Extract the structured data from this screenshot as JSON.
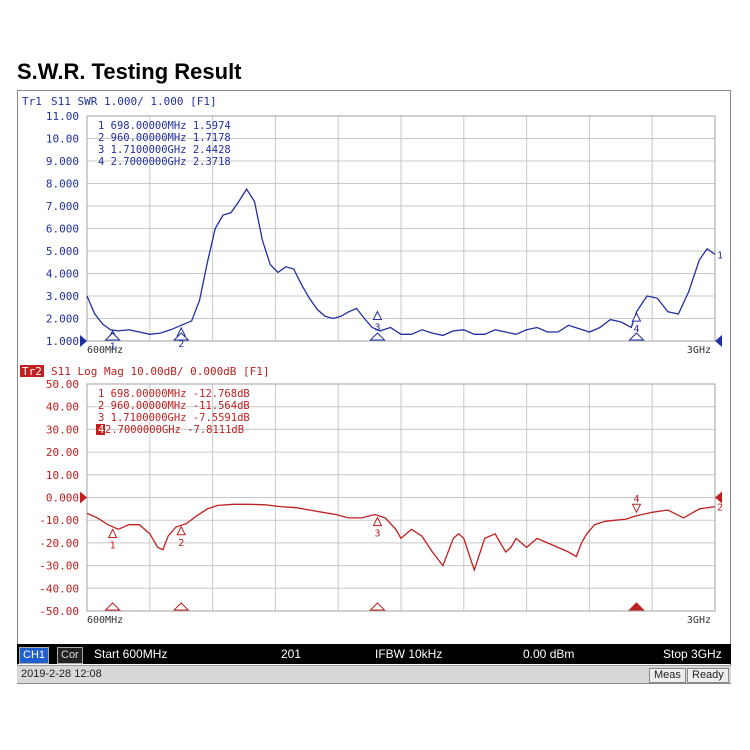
{
  "page": {
    "title": "S.W.R. Testing Result"
  },
  "colors": {
    "trace1": "#2030a0",
    "trace2": "#c02020",
    "grid": "#c8c8c8",
    "marker_fill": "#ffffff"
  },
  "chart_data": [
    {
      "type": "line",
      "trace_label": "Tr1",
      "header": "S11  SWR 1.000/ 1.000      [F1]",
      "y_ticks": [
        "11.00",
        "10.00",
        "9.000",
        "8.000",
        "7.000",
        "6.000",
        "5.000",
        "4.000",
        "3.000",
        "2.000",
        "1.000"
      ],
      "ylim": [
        1,
        11
      ],
      "x_start_label": "600MHz",
      "x_stop_label": "3GHz",
      "xlim_mhz": [
        600,
        3000
      ],
      "marker_table": [
        "1 698.00000MHz 1.5974",
        "2 960.00000MHz 1.7178",
        "3 1.7100000GHz 2.4428",
        "4 2.7000000GHz 2.3718"
      ],
      "markers": [
        {
          "label": "1",
          "x": 698,
          "y": 1.5974
        },
        {
          "label": "2",
          "x": 960,
          "y": 1.7178
        },
        {
          "label": "3",
          "x": 1710,
          "y": 2.4428
        },
        {
          "label": "4",
          "x": 2700,
          "y": 2.3718
        }
      ],
      "trace_end_label": "1",
      "series": [
        {
          "x": [
            600,
            630,
            660,
            690,
            720,
            760,
            800,
            840,
            880,
            920,
            960,
            1000,
            1030,
            1060,
            1090,
            1120,
            1150,
            1180,
            1210,
            1240,
            1270,
            1300,
            1330,
            1360,
            1390,
            1420,
            1450,
            1480,
            1510,
            1540,
            1570,
            1600,
            1630,
            1660,
            1690,
            1720,
            1760,
            1800,
            1840,
            1880,
            1920,
            1960,
            2000,
            2040,
            2080,
            2120,
            2160,
            2200,
            2240,
            2280,
            2320,
            2360,
            2400,
            2440,
            2480,
            2520,
            2560,
            2600,
            2640,
            2680,
            2700,
            2740,
            2780,
            2820,
            2860,
            2900,
            2940,
            2970,
            3000
          ],
          "y": [
            3.0,
            2.2,
            1.75,
            1.5,
            1.45,
            1.5,
            1.4,
            1.3,
            1.35,
            1.5,
            1.7,
            1.9,
            2.8,
            4.5,
            6.0,
            6.6,
            6.7,
            7.2,
            7.75,
            7.2,
            5.5,
            4.4,
            4.05,
            4.3,
            4.2,
            3.5,
            2.9,
            2.4,
            2.1,
            2.0,
            2.1,
            2.3,
            2.45,
            2.0,
            1.6,
            1.45,
            1.6,
            1.3,
            1.3,
            1.5,
            1.35,
            1.25,
            1.45,
            1.5,
            1.3,
            1.3,
            1.5,
            1.4,
            1.3,
            1.5,
            1.6,
            1.4,
            1.4,
            1.7,
            1.55,
            1.4,
            1.6,
            1.95,
            1.85,
            1.6,
            2.3,
            3.0,
            2.9,
            2.3,
            2.2,
            3.2,
            4.6,
            5.1,
            4.85
          ]
        }
      ]
    },
    {
      "type": "line",
      "trace_label": "Tr2",
      "header": "S11  Log Mag 10.00dB/ 0.000dB     [F1]",
      "y_ticks": [
        "50.00",
        "40.00",
        "30.00",
        "20.00",
        "10.00",
        "0.000",
        "-10.00",
        "-20.00",
        "-30.00",
        "-40.00",
        "-50.00"
      ],
      "ylim": [
        -50,
        50
      ],
      "x_start_label": "600MHz",
      "x_stop_label": "3GHz",
      "xlim_mhz": [
        600,
        3000
      ],
      "marker_table": [
        "1 698.00000MHz -12.768dB",
        "2 960.00000MHz -11.564dB",
        "3 1.7100000GHz -7.5591dB",
        "4 2.7000000GHz -7.8111dB"
      ],
      "active_marker": "4",
      "markers": [
        {
          "label": "1",
          "x": 698,
          "y": -12.768
        },
        {
          "label": "2",
          "x": 960,
          "y": -11.564
        },
        {
          "label": "3",
          "x": 1710,
          "y": -7.5591
        },
        {
          "label": "4",
          "x": 2700,
          "y": -7.8111
        }
      ],
      "trace_end_label": "2",
      "series": [
        {
          "x": [
            600,
            640,
            680,
            720,
            760,
            800,
            840,
            870,
            890,
            910,
            940,
            980,
            1020,
            1060,
            1100,
            1160,
            1220,
            1280,
            1340,
            1400,
            1450,
            1500,
            1550,
            1600,
            1650,
            1700,
            1740,
            1780,
            1800,
            1840,
            1880,
            1920,
            1960,
            2000,
            2020,
            2040,
            2060,
            2080,
            2120,
            2160,
            2180,
            2200,
            2220,
            2240,
            2280,
            2320,
            2360,
            2400,
            2440,
            2470,
            2490,
            2510,
            2540,
            2580,
            2620,
            2660,
            2700,
            2760,
            2820,
            2880,
            2940,
            3000
          ],
          "y": [
            -7,
            -9,
            -12,
            -14,
            -12,
            -12,
            -16,
            -22,
            -23,
            -17,
            -13,
            -11.5,
            -8,
            -5,
            -3.5,
            -3,
            -3,
            -3.2,
            -4,
            -4.5,
            -5.5,
            -6.5,
            -7.5,
            -9,
            -9,
            -7.5,
            -9,
            -14,
            -18,
            -14,
            -17,
            -24,
            -30,
            -18,
            -16,
            -18,
            -25,
            -32,
            -18,
            -16,
            -20,
            -24,
            -22,
            -18,
            -22,
            -18,
            -20,
            -22,
            -24,
            -26,
            -20,
            -16,
            -12,
            -10.5,
            -10,
            -9.5,
            -8,
            -6.5,
            -5.5,
            -9,
            -5,
            -4
          ]
        }
      ]
    }
  ],
  "status_bar": {
    "channel": "CH1",
    "cor": "Cor",
    "start": "Start 600MHz",
    "points": "201",
    "ifbw": "IFBW 10kHz",
    "power": "0.00 dBm",
    "stop": "Stop 3GHz"
  },
  "info_bar": {
    "datetime": "2019-2-28 12:08",
    "meas": "Meas",
    "ready": "Ready"
  }
}
